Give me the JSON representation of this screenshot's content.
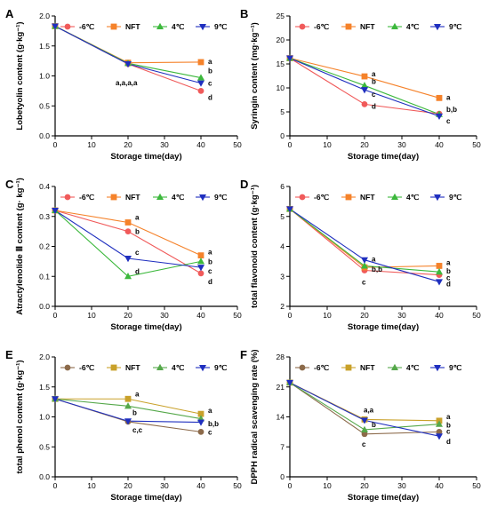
{
  "colors": {
    "-6c": "#f05a5a",
    "nft": "#f5822a",
    "4c": "#3cb83c",
    "9c": "#1f2fbf",
    "-6c_alt": "#8c6a4a",
    "nft_alt": "#c9a12a",
    "4c_alt": "#55a84a",
    "9c_alt": "#1f2fbf"
  },
  "chart_data": [
    {
      "panel": "A",
      "type": "line",
      "xlabel": "Storage time(day)",
      "ylabel": "Lobetyolin content (g·kg⁻¹)",
      "xlim": [
        0,
        50
      ],
      "ylim": [
        0,
        2.0
      ],
      "xticks": [
        "0",
        "10",
        "20",
        "30",
        "40",
        "50"
      ],
      "xtick_values": [
        0,
        10,
        20,
        30,
        40,
        50
      ],
      "yticks": [
        "0.0",
        "0.5",
        "1.0",
        "1.5",
        "2.0"
      ],
      "ytick_values": [
        0,
        0.5,
        1.0,
        1.5,
        2.0
      ],
      "legend": [
        "-6℃",
        "NFT",
        "4℃",
        "9℃"
      ],
      "x": [
        0,
        20,
        40
      ],
      "series": [
        {
          "name": "-6℃",
          "values": [
            1.83,
            1.2,
            0.75
          ],
          "color": "#f05a5a",
          "marker": "circle"
        },
        {
          "name": "NFT",
          "values": [
            1.83,
            1.22,
            1.23
          ],
          "color": "#f5822a",
          "marker": "square"
        },
        {
          "name": "4℃",
          "values": [
            1.83,
            1.21,
            0.97
          ],
          "color": "#3cb83c",
          "marker": "triangle-up"
        },
        {
          "name": "9℃",
          "values": [
            1.83,
            1.2,
            0.88
          ],
          "color": "#1f2fbf",
          "marker": "triangle-down"
        }
      ],
      "annotations": [
        {
          "x": 20,
          "y": 1.2,
          "text": "a,a,a,a",
          "dx": -14,
          "dy": 24
        },
        {
          "x": 40,
          "y": 1.23,
          "text": "a",
          "dx": 8,
          "dy": 2
        },
        {
          "x": 40,
          "y": 0.97,
          "text": "b",
          "dx": 8,
          "dy": -5
        },
        {
          "x": 40,
          "y": 0.88,
          "text": "c",
          "dx": 8,
          "dy": 3
        },
        {
          "x": 40,
          "y": 0.75,
          "text": "d",
          "dx": 8,
          "dy": 10
        }
      ]
    },
    {
      "panel": "B",
      "type": "line",
      "xlabel": "Storage time(day)",
      "ylabel": "Syringin content (mg·kg⁻¹)",
      "xlim": [
        0,
        50
      ],
      "ylim": [
        0,
        25
      ],
      "xticks": [
        "0",
        "10",
        "20",
        "30",
        "40",
        "50"
      ],
      "xtick_values": [
        0,
        10,
        20,
        30,
        40,
        50
      ],
      "yticks": [
        "0",
        "5",
        "10",
        "15",
        "20",
        "25"
      ],
      "ytick_values": [
        0,
        5,
        10,
        15,
        20,
        25
      ],
      "legend": [
        "-6℃",
        "NFT",
        "4℃",
        "9℃"
      ],
      "x": [
        0,
        20,
        40
      ],
      "series": [
        {
          "name": "-6℃",
          "values": [
            16.2,
            6.6,
            4.6
          ],
          "color": "#f05a5a",
          "marker": "circle"
        },
        {
          "name": "NFT",
          "values": [
            16.2,
            12.4,
            7.9
          ],
          "color": "#f5822a",
          "marker": "square"
        },
        {
          "name": "4℃",
          "values": [
            16.2,
            10.5,
            4.5
          ],
          "color": "#3cb83c",
          "marker": "triangle-up"
        },
        {
          "name": "9℃",
          "values": [
            16.2,
            9.6,
            4.1
          ],
          "color": "#1f2fbf",
          "marker": "triangle-down"
        }
      ],
      "annotations": [
        {
          "x": 20,
          "y": 12.4,
          "text": "a",
          "dx": 8,
          "dy": 0
        },
        {
          "x": 20,
          "y": 10.5,
          "text": "b",
          "dx": 8,
          "dy": -2
        },
        {
          "x": 20,
          "y": 9.6,
          "text": "c",
          "dx": 8,
          "dy": 8
        },
        {
          "x": 20,
          "y": 6.6,
          "text": "d",
          "dx": 8,
          "dy": 5
        },
        {
          "x": 40,
          "y": 7.9,
          "text": "a",
          "dx": 8,
          "dy": 2
        },
        {
          "x": 40,
          "y": 4.6,
          "text": "b,b",
          "dx": 8,
          "dy": -2
        },
        {
          "x": 40,
          "y": 4.1,
          "text": "c",
          "dx": 8,
          "dy": 8
        }
      ]
    },
    {
      "panel": "C",
      "type": "line",
      "xlabel": "Storage time(day)",
      "ylabel": "Atractylenolide Ⅲ content (g· kg⁻¹)",
      "xlim": [
        0,
        50
      ],
      "ylim": [
        0,
        0.4
      ],
      "xticks": [
        "0",
        "10",
        "20",
        "30",
        "40",
        "50"
      ],
      "xtick_values": [
        0,
        10,
        20,
        30,
        40,
        50
      ],
      "yticks": [
        "0.0",
        "0.1",
        "0.2",
        "0.3",
        "0.4"
      ],
      "ytick_values": [
        0,
        0.1,
        0.2,
        0.3,
        0.4
      ],
      "legend": [
        "-6℃",
        "NFT",
        "4℃",
        "9℃"
      ],
      "x": [
        0,
        20,
        40
      ],
      "series": [
        {
          "name": "-6℃",
          "values": [
            0.32,
            0.25,
            0.11
          ],
          "color": "#f05a5a",
          "marker": "circle"
        },
        {
          "name": "NFT",
          "values": [
            0.32,
            0.28,
            0.17
          ],
          "color": "#f5822a",
          "marker": "square"
        },
        {
          "name": "4℃",
          "values": [
            0.32,
            0.1,
            0.15
          ],
          "color": "#3cb83c",
          "marker": "triangle-up"
        },
        {
          "name": "9℃",
          "values": [
            0.32,
            0.16,
            0.13
          ],
          "color": "#1f2fbf",
          "marker": "triangle-down"
        }
      ],
      "annotations": [
        {
          "x": 20,
          "y": 0.28,
          "text": "a",
          "dx": 8,
          "dy": -3
        },
        {
          "x": 20,
          "y": 0.25,
          "text": "b",
          "dx": 8,
          "dy": 3
        },
        {
          "x": 20,
          "y": 0.16,
          "text": "c",
          "dx": 8,
          "dy": -4
        },
        {
          "x": 20,
          "y": 0.1,
          "text": "d",
          "dx": 8,
          "dy": -3
        },
        {
          "x": 40,
          "y": 0.17,
          "text": "a",
          "dx": 8,
          "dy": -1
        },
        {
          "x": 40,
          "y": 0.15,
          "text": "b",
          "dx": 8,
          "dy": 3
        },
        {
          "x": 40,
          "y": 0.13,
          "text": "c",
          "dx": 8,
          "dy": 7
        },
        {
          "x": 40,
          "y": 0.11,
          "text": "d",
          "dx": 8,
          "dy": 12
        }
      ]
    },
    {
      "panel": "D",
      "type": "line",
      "xlabel": "Storage time(day)",
      "ylabel": "total flavonoid content (g·kg⁻¹)",
      "xlim": [
        0,
        50
      ],
      "ylim": [
        2,
        6
      ],
      "xticks": [
        "0",
        "10",
        "20",
        "30",
        "40",
        "50"
      ],
      "xtick_values": [
        0,
        10,
        20,
        30,
        40,
        50
      ],
      "yticks": [
        "2",
        "3",
        "4",
        "5",
        "6"
      ],
      "ytick_values": [
        2,
        3,
        4,
        5,
        6
      ],
      "legend": [
        "-6℃",
        "NFT",
        "4℃",
        "9℃"
      ],
      "x": [
        0,
        20,
        40
      ],
      "series": [
        {
          "name": "-6℃",
          "values": [
            5.25,
            3.2,
            3.05
          ],
          "color": "#f05a5a",
          "marker": "circle"
        },
        {
          "name": "NFT",
          "values": [
            5.25,
            3.3,
            3.35
          ],
          "color": "#f5822a",
          "marker": "square"
        },
        {
          "name": "4℃",
          "values": [
            5.25,
            3.35,
            3.15
          ],
          "color": "#3cb83c",
          "marker": "triangle-up"
        },
        {
          "name": "9℃",
          "values": [
            5.25,
            3.55,
            2.82
          ],
          "color": "#1f2fbf",
          "marker": "triangle-down"
        }
      ],
      "annotations": [
        {
          "x": 20,
          "y": 3.55,
          "text": "a",
          "dx": 8,
          "dy": 2
        },
        {
          "x": 20,
          "y": 3.3,
          "text": "b,b",
          "dx": 8,
          "dy": 5
        },
        {
          "x": 20,
          "y": 3.2,
          "text": "c",
          "dx": -3,
          "dy": 16
        },
        {
          "x": 40,
          "y": 3.35,
          "text": "a",
          "dx": 8,
          "dy": -1
        },
        {
          "x": 40,
          "y": 3.15,
          "text": "b",
          "dx": 8,
          "dy": 2
        },
        {
          "x": 40,
          "y": 3.05,
          "text": "c",
          "dx": 8,
          "dy": 6
        },
        {
          "x": 40,
          "y": 2.82,
          "text": "d",
          "dx": 8,
          "dy": 5
        }
      ]
    },
    {
      "panel": "E",
      "type": "line",
      "xlabel": "Storage time(day)",
      "ylabel": "total phenol content (g·kg⁻¹)",
      "xlim": [
        0,
        50
      ],
      "ylim": [
        0,
        2.0
      ],
      "xticks": [
        "0",
        "10",
        "20",
        "30",
        "40",
        "50"
      ],
      "xtick_values": [
        0,
        10,
        20,
        30,
        40,
        50
      ],
      "yticks": [
        "0.0",
        "0.5",
        "1.0",
        "1.5",
        "2.0"
      ],
      "ytick_values": [
        0,
        0.5,
        1.0,
        1.5,
        2.0
      ],
      "legend": [
        "-6℃",
        "NFT",
        "4℃",
        "9℃"
      ],
      "x": [
        0,
        20,
        40
      ],
      "series": [
        {
          "name": "-6℃",
          "values": [
            1.3,
            0.92,
            0.75
          ],
          "color": "#8c6a4a",
          "marker": "circle"
        },
        {
          "name": "NFT",
          "values": [
            1.3,
            1.3,
            1.05
          ],
          "color": "#c9a12a",
          "marker": "square"
        },
        {
          "name": "4℃",
          "values": [
            1.3,
            1.18,
            0.97
          ],
          "color": "#55a84a",
          "marker": "triangle-up"
        },
        {
          "name": "9℃",
          "values": [
            1.3,
            0.93,
            0.91
          ],
          "color": "#1f2fbf",
          "marker": "triangle-down"
        }
      ],
      "annotations": [
        {
          "x": 20,
          "y": 1.3,
          "text": "a",
          "dx": 8,
          "dy": -3
        },
        {
          "x": 20,
          "y": 1.18,
          "text": "b",
          "dx": 5,
          "dy": 10
        },
        {
          "x": 20,
          "y": 0.92,
          "text": "c,c",
          "dx": 5,
          "dy": 12
        },
        {
          "x": 40,
          "y": 1.05,
          "text": "a",
          "dx": 8,
          "dy": -1
        },
        {
          "x": 40,
          "y": 0.93,
          "text": "b,b",
          "dx": 8,
          "dy": 6
        },
        {
          "x": 40,
          "y": 0.75,
          "text": "c",
          "dx": 8,
          "dy": 3
        }
      ]
    },
    {
      "panel": "F",
      "type": "line",
      "xlabel": "Storage time(day)",
      "ylabel": "DPPH radical scavenging rate (%)",
      "xlim": [
        0,
        50
      ],
      "ylim": [
        0,
        28
      ],
      "xticks": [
        "0",
        "10",
        "20",
        "30",
        "40",
        "50"
      ],
      "xtick_values": [
        0,
        10,
        20,
        30,
        40,
        50
      ],
      "yticks": [
        "0",
        "7",
        "14",
        "21",
        "28"
      ],
      "ytick_values": [
        0,
        7,
        14,
        21,
        28
      ],
      "legend": [
        "-6℃",
        "NFT",
        "4℃",
        "9℃"
      ],
      "x": [
        0,
        20,
        40
      ],
      "series": [
        {
          "name": "-6℃",
          "values": [
            22.0,
            10.0,
            10.5
          ],
          "color": "#8c6a4a",
          "marker": "circle"
        },
        {
          "name": "NFT",
          "values": [
            22.0,
            13.4,
            13.1
          ],
          "color": "#c9a12a",
          "marker": "square"
        },
        {
          "name": "4℃",
          "values": [
            22.0,
            11.0,
            12.3
          ],
          "color": "#55a84a",
          "marker": "triangle-up"
        },
        {
          "name": "9℃",
          "values": [
            22.0,
            13.2,
            9.5
          ],
          "color": "#1f2fbf",
          "marker": "triangle-down"
        }
      ],
      "annotations": [
        {
          "x": 20,
          "y": 13.4,
          "text": "a,a",
          "dx": -1,
          "dy": -8
        },
        {
          "x": 20,
          "y": 11.0,
          "text": "b",
          "dx": 8,
          "dy": -3
        },
        {
          "x": 20,
          "y": 10.0,
          "text": "c",
          "dx": -3,
          "dy": 14
        },
        {
          "x": 40,
          "y": 13.1,
          "text": "a",
          "dx": 8,
          "dy": -2
        },
        {
          "x": 40,
          "y": 12.3,
          "text": "b",
          "dx": 8,
          "dy": 4
        },
        {
          "x": 40,
          "y": 10.5,
          "text": "c",
          "dx": 8,
          "dy": 2
        },
        {
          "x": 40,
          "y": 9.5,
          "text": "d",
          "dx": 8,
          "dy": 9
        }
      ]
    }
  ]
}
